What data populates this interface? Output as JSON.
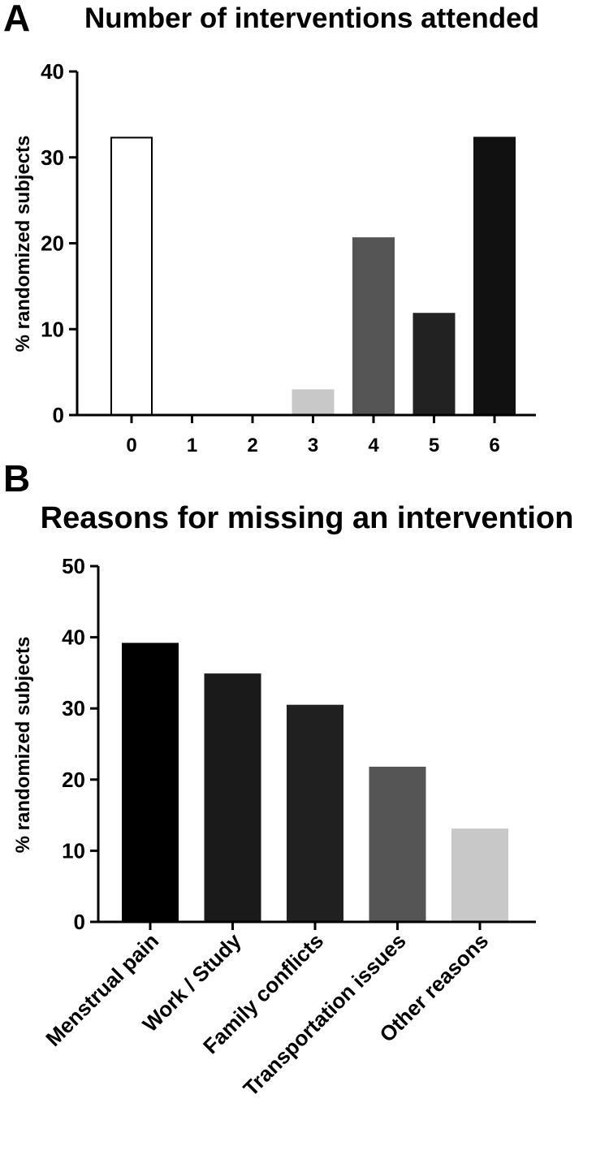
{
  "chart_data": [
    {
      "panel_label": "A",
      "type": "bar",
      "title": "Number of interventions attended",
      "xlabel": "",
      "ylabel": "% randomized subjects",
      "categories": [
        "0",
        "1",
        "2",
        "3",
        "4",
        "5",
        "6"
      ],
      "values": [
        32.3,
        0,
        0,
        2.9,
        20.6,
        11.8,
        32.3
      ],
      "colors": [
        "#ffffff",
        "#ffffff",
        "#ffffff",
        "#c8c8c8",
        "#555555",
        "#222222",
        "#111111"
      ],
      "ylim": [
        0,
        40
      ],
      "yticks": [
        "0",
        "10",
        "20",
        "30",
        "40"
      ],
      "grid": false,
      "legend": "none"
    },
    {
      "panel_label": "B",
      "type": "bar",
      "title": "Reasons for missing an intervention",
      "xlabel": "",
      "ylabel": "% randomized subjects",
      "categories": [
        "Menstrual pain",
        "Work / Study",
        "Family conflicts",
        "Transportation issues",
        "Other reasons"
      ],
      "values": [
        39.1,
        34.8,
        30.4,
        21.7,
        13.0
      ],
      "colors": [
        "#000000",
        "#1a1a1a",
        "#202020",
        "#555555",
        "#c8c8c8"
      ],
      "ylim": [
        0,
        50
      ],
      "yticks": [
        "0",
        "10",
        "20",
        "30",
        "40",
        "50"
      ],
      "grid": false,
      "legend": "none"
    }
  ]
}
